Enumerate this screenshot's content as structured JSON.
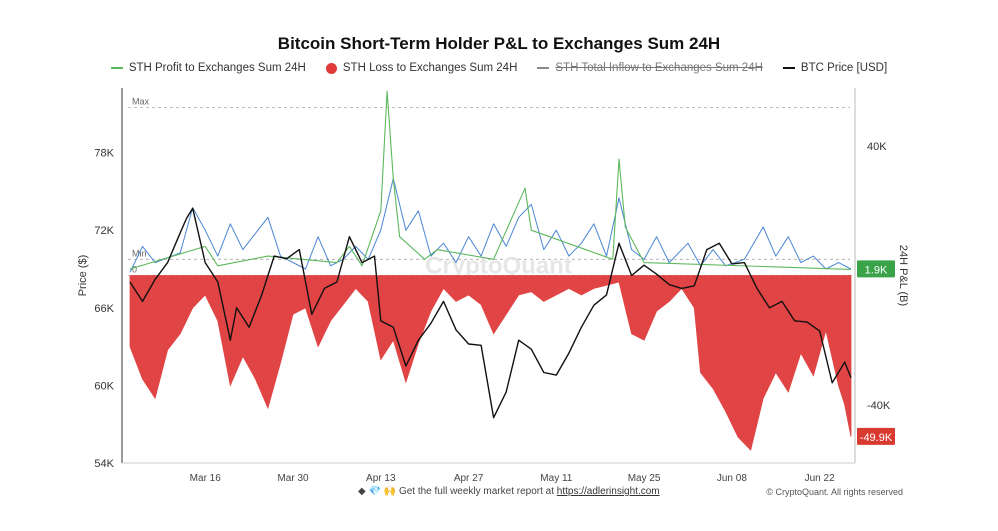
{
  "chart_data": {
    "type": "line",
    "title": "Bitcoin Short-Term Holder P&L to Exchanges Sum 24H",
    "watermark": "CryptoQuant",
    "y_left": {
      "label": "Price ($)",
      "range": [
        54000,
        83000
      ],
      "ticks": [
        "54K",
        "60K",
        "66K",
        "72K",
        "78K"
      ],
      "tick_values": [
        54000,
        60000,
        66000,
        72000,
        78000
      ]
    },
    "y_right": {
      "label": "24H P&L (B)",
      "range": [
        -58000,
        58000
      ],
      "ticks": [
        "40K",
        "0",
        "-40K"
      ],
      "tick_values": [
        40000,
        0,
        -40000
      ]
    },
    "x_axis": {
      "range": [
        "2024-03-04",
        "2024-06-27"
      ],
      "ticks": [
        "Mar 16",
        "Mar 30",
        "Apr 13",
        "Apr 27",
        "May 11",
        "May 25",
        "Jun 08",
        "Jun 22"
      ],
      "tick_dates": [
        "2024-03-16",
        "2024-03-30",
        "2024-04-13",
        "2024-04-27",
        "2024-05-11",
        "2024-05-25",
        "2024-06-08",
        "2024-06-22"
      ]
    },
    "reference_lines": [
      {
        "label": "Max",
        "value": 52000,
        "axis": "right"
      },
      {
        "label": "Min",
        "value": 5000,
        "axis": "right"
      },
      {
        "label": "0",
        "value": 0,
        "axis": "right"
      }
    ],
    "series": [
      {
        "name": "STH Profit to Exchanges Sum 24H",
        "color": "#5cb85c",
        "type": "line",
        "points": [
          [
            "2024-03-04",
            2000
          ],
          [
            "2024-03-16",
            9000
          ],
          [
            "2024-03-18",
            3000
          ],
          [
            "2024-03-26",
            6000
          ],
          [
            "2024-04-06",
            4000
          ],
          [
            "2024-04-08",
            9000
          ],
          [
            "2024-04-10",
            3000
          ],
          [
            "2024-04-13",
            20000
          ],
          [
            "2024-04-14",
            57000
          ],
          [
            "2024-04-15",
            30000
          ],
          [
            "2024-04-16",
            12000
          ],
          [
            "2024-04-20",
            5000
          ],
          [
            "2024-04-22",
            8000
          ],
          [
            "2024-05-01",
            5000
          ],
          [
            "2024-05-06",
            27000
          ],
          [
            "2024-05-07",
            14000
          ],
          [
            "2024-05-20",
            5000
          ],
          [
            "2024-05-21",
            36000
          ],
          [
            "2024-05-22",
            15000
          ],
          [
            "2024-05-25",
            4000
          ],
          [
            "2024-06-27",
            1900
          ]
        ]
      },
      {
        "name": "STH Loss to Exchanges Sum 24H",
        "color": "#e03a3a",
        "type": "area",
        "points": [
          [
            "2024-03-04",
            -22000
          ],
          [
            "2024-03-06",
            -32000
          ],
          [
            "2024-03-08",
            -38000
          ],
          [
            "2024-03-10",
            -23000
          ],
          [
            "2024-03-12",
            -18000
          ],
          [
            "2024-03-14",
            -10000
          ],
          [
            "2024-03-16",
            -6000
          ],
          [
            "2024-03-18",
            -14000
          ],
          [
            "2024-03-20",
            -34000
          ],
          [
            "2024-03-22",
            -25000
          ],
          [
            "2024-03-24",
            -32000
          ],
          [
            "2024-03-26",
            -41000
          ],
          [
            "2024-03-28",
            -27000
          ],
          [
            "2024-03-30",
            -12000
          ],
          [
            "2024-04-01",
            -10000
          ],
          [
            "2024-04-03",
            -22000
          ],
          [
            "2024-04-05",
            -14000
          ],
          [
            "2024-04-07",
            -9000
          ],
          [
            "2024-04-09",
            -4000
          ],
          [
            "2024-04-11",
            -8000
          ],
          [
            "2024-04-13",
            -26000
          ],
          [
            "2024-04-15",
            -20000
          ],
          [
            "2024-04-17",
            -33000
          ],
          [
            "2024-04-19",
            -21000
          ],
          [
            "2024-04-21",
            -11000
          ],
          [
            "2024-04-23",
            -4000
          ],
          [
            "2024-04-25",
            -8000
          ],
          [
            "2024-04-27",
            -6000
          ],
          [
            "2024-04-29",
            -9000
          ],
          [
            "2024-05-01",
            -18000
          ],
          [
            "2024-05-03",
            -12000
          ],
          [
            "2024-05-05",
            -6000
          ],
          [
            "2024-05-07",
            -5000
          ],
          [
            "2024-05-09",
            -8000
          ],
          [
            "2024-05-11",
            -6000
          ],
          [
            "2024-05-13",
            -4000
          ],
          [
            "2024-05-15",
            -6000
          ],
          [
            "2024-05-17",
            -4000
          ],
          [
            "2024-05-19",
            -3000
          ],
          [
            "2024-05-21",
            -2000
          ],
          [
            "2024-05-23",
            -18000
          ],
          [
            "2024-05-25",
            -20000
          ],
          [
            "2024-05-27",
            -11000
          ],
          [
            "2024-05-29",
            -8000
          ],
          [
            "2024-05-31",
            -4000
          ],
          [
            "2024-06-02",
            -10000
          ],
          [
            "2024-06-03",
            -30000
          ],
          [
            "2024-06-05",
            -35000
          ],
          [
            "2024-06-07",
            -42000
          ],
          [
            "2024-06-09",
            -50000
          ],
          [
            "2024-06-11",
            -54000
          ],
          [
            "2024-06-13",
            -38000
          ],
          [
            "2024-06-15",
            -30000
          ],
          [
            "2024-06-17",
            -36000
          ],
          [
            "2024-06-19",
            -24000
          ],
          [
            "2024-06-21",
            -31000
          ],
          [
            "2024-06-23",
            -17000
          ],
          [
            "2024-06-25",
            -34000
          ],
          [
            "2024-06-26",
            -40000
          ],
          [
            "2024-06-27",
            -49900
          ]
        ]
      },
      {
        "name": "STH Total Inflow to Exchanges Sum 24H",
        "color": "#4a86d4",
        "type": "line",
        "legend_disabled": true,
        "points": [
          [
            "2024-03-04",
            1000
          ],
          [
            "2024-03-06",
            9000
          ],
          [
            "2024-03-08",
            4000
          ],
          [
            "2024-03-12",
            7000
          ],
          [
            "2024-03-14",
            21000
          ],
          [
            "2024-03-16",
            14000
          ],
          [
            "2024-03-18",
            6000
          ],
          [
            "2024-03-20",
            16000
          ],
          [
            "2024-03-22",
            8000
          ],
          [
            "2024-03-26",
            18000
          ],
          [
            "2024-03-28",
            6000
          ],
          [
            "2024-04-01",
            2000
          ],
          [
            "2024-04-03",
            12000
          ],
          [
            "2024-04-05",
            3000
          ],
          [
            "2024-04-07",
            5000
          ],
          [
            "2024-04-09",
            9000
          ],
          [
            "2024-04-11",
            5000
          ],
          [
            "2024-04-13",
            14000
          ],
          [
            "2024-04-15",
            30000
          ],
          [
            "2024-04-17",
            14000
          ],
          [
            "2024-04-19",
            20000
          ],
          [
            "2024-04-21",
            6000
          ],
          [
            "2024-04-23",
            10000
          ],
          [
            "2024-04-25",
            4000
          ],
          [
            "2024-04-27",
            12000
          ],
          [
            "2024-04-29",
            6000
          ],
          [
            "2024-05-01",
            16000
          ],
          [
            "2024-05-03",
            9000
          ],
          [
            "2024-05-05",
            18000
          ],
          [
            "2024-05-07",
            22000
          ],
          [
            "2024-05-09",
            8000
          ],
          [
            "2024-05-11",
            14000
          ],
          [
            "2024-05-13",
            6000
          ],
          [
            "2024-05-15",
            10000
          ],
          [
            "2024-05-17",
            16000
          ],
          [
            "2024-05-19",
            6000
          ],
          [
            "2024-05-21",
            24000
          ],
          [
            "2024-05-23",
            8000
          ],
          [
            "2024-05-25",
            5000
          ],
          [
            "2024-05-27",
            12000
          ],
          [
            "2024-05-29",
            4000
          ],
          [
            "2024-06-01",
            10000
          ],
          [
            "2024-06-03",
            3000
          ],
          [
            "2024-06-05",
            8000
          ],
          [
            "2024-06-07",
            3000
          ],
          [
            "2024-06-10",
            5000
          ],
          [
            "2024-06-13",
            15000
          ],
          [
            "2024-06-15",
            6000
          ],
          [
            "2024-06-17",
            12000
          ],
          [
            "2024-06-19",
            4000
          ],
          [
            "2024-06-21",
            6000
          ],
          [
            "2024-06-23",
            2000
          ],
          [
            "2024-06-25",
            4000
          ],
          [
            "2024-06-27",
            2000
          ]
        ]
      },
      {
        "name": "BTC Price [USD]",
        "color": "#111111",
        "type": "line",
        "axis": "left",
        "points": [
          [
            "2024-03-04",
            68000
          ],
          [
            "2024-03-06",
            66500
          ],
          [
            "2024-03-08",
            68200
          ],
          [
            "2024-03-10",
            69500
          ],
          [
            "2024-03-12",
            71800
          ],
          [
            "2024-03-13",
            72900
          ],
          [
            "2024-03-14",
            73700
          ],
          [
            "2024-03-16",
            69500
          ],
          [
            "2024-03-18",
            68000
          ],
          [
            "2024-03-20",
            63500
          ],
          [
            "2024-03-21",
            66000
          ],
          [
            "2024-03-23",
            64500
          ],
          [
            "2024-03-25",
            67000
          ],
          [
            "2024-03-27",
            70000
          ],
          [
            "2024-03-29",
            69800
          ],
          [
            "2024-03-31",
            70500
          ],
          [
            "2024-04-02",
            65500
          ],
          [
            "2024-04-04",
            67500
          ],
          [
            "2024-04-06",
            68000
          ],
          [
            "2024-04-08",
            71500
          ],
          [
            "2024-04-10",
            69500
          ],
          [
            "2024-04-12",
            70000
          ],
          [
            "2024-04-13",
            65000
          ],
          [
            "2024-04-15",
            64500
          ],
          [
            "2024-04-17",
            61500
          ],
          [
            "2024-04-19",
            63500
          ],
          [
            "2024-04-21",
            64800
          ],
          [
            "2024-04-23",
            66500
          ],
          [
            "2024-04-25",
            64300
          ],
          [
            "2024-04-27",
            63200
          ],
          [
            "2024-04-29",
            63100
          ],
          [
            "2024-05-01",
            57500
          ],
          [
            "2024-05-03",
            59500
          ],
          [
            "2024-05-05",
            63500
          ],
          [
            "2024-05-07",
            62800
          ],
          [
            "2024-05-09",
            61000
          ],
          [
            "2024-05-11",
            60800
          ],
          [
            "2024-05-13",
            62500
          ],
          [
            "2024-05-15",
            64500
          ],
          [
            "2024-05-17",
            66200
          ],
          [
            "2024-05-19",
            67000
          ],
          [
            "2024-05-21",
            71000
          ],
          [
            "2024-05-23",
            68500
          ],
          [
            "2024-05-25",
            69300
          ],
          [
            "2024-05-27",
            68600
          ],
          [
            "2024-05-29",
            67800
          ],
          [
            "2024-05-31",
            67500
          ],
          [
            "2024-06-02",
            67700
          ],
          [
            "2024-06-04",
            70500
          ],
          [
            "2024-06-06",
            71000
          ],
          [
            "2024-06-08",
            69400
          ],
          [
            "2024-06-10",
            69500
          ],
          [
            "2024-06-12",
            67500
          ],
          [
            "2024-06-14",
            66000
          ],
          [
            "2024-06-16",
            66500
          ],
          [
            "2024-06-18",
            65000
          ],
          [
            "2024-06-20",
            64900
          ],
          [
            "2024-06-22",
            64200
          ],
          [
            "2024-06-24",
            60200
          ],
          [
            "2024-06-26",
            61800
          ],
          [
            "2024-06-27",
            60600
          ]
        ]
      }
    ],
    "last_values": {
      "profit": "1.9K",
      "loss": "-49.9K"
    },
    "colors": {
      "profit": "#5cb85c",
      "loss": "#e03a3a",
      "inflow": "#4a86d4",
      "price": "#111111",
      "profit_badge": "#3aa34a",
      "loss_badge": "#d93a30"
    }
  },
  "legend": {
    "profit": "STH Profit to Exchanges Sum 24H",
    "loss": "STH Loss to Exchanges Sum 24H",
    "inflow": "STH Total Inflow to Exchanges Sum 24H",
    "price": "BTC Price [USD]"
  },
  "footer": {
    "emojis": "◆ 💎 🙌",
    "text": "Get the full weekly market report at ",
    "link": "https://adlerinsight.com",
    "copyright": "© CryptoQuant. All rights reserved"
  }
}
